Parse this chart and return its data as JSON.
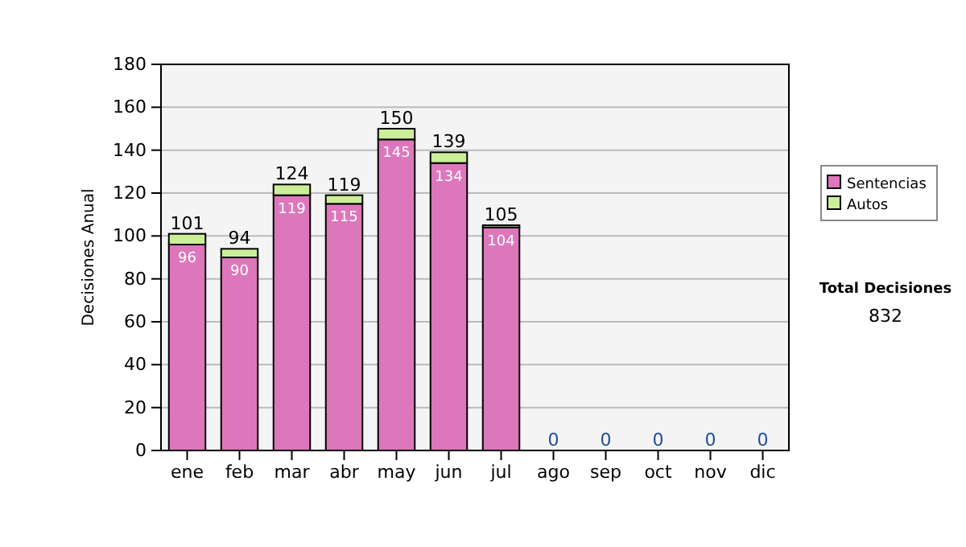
{
  "chart_data": {
    "type": "bar",
    "stacked": true,
    "ylabel": "Decisiones Anual",
    "categories": [
      "ene",
      "feb",
      "mar",
      "abr",
      "may",
      "jun",
      "jul",
      "ago",
      "sep",
      "oct",
      "nov",
      "dic"
    ],
    "series": [
      {
        "name": "Sentencias",
        "color": "#dd77bb",
        "values": [
          96,
          90,
          119,
          115,
          145,
          134,
          104,
          0,
          0,
          0,
          0,
          0
        ],
        "value_labels": [
          "96",
          "90",
          "119",
          "115",
          "145",
          "134",
          "104",
          null,
          null,
          null,
          null,
          null
        ]
      },
      {
        "name": "Autos",
        "color": "#ccee99",
        "values": [
          5,
          4,
          5,
          4,
          5,
          5,
          1,
          0,
          0,
          0,
          0,
          0
        ]
      }
    ],
    "totals": [
      "101",
      "94",
      "124",
      "119",
      "150",
      "139",
      "105",
      "0",
      "0",
      "0",
      "0",
      "0"
    ],
    "ylim": [
      0,
      180
    ],
    "yticks": [
      0,
      20,
      40,
      60,
      80,
      100,
      120,
      140,
      160,
      180
    ],
    "grid": "y",
    "legend": "right",
    "annotations": [
      "Total Decisiones",
      "832"
    ]
  }
}
